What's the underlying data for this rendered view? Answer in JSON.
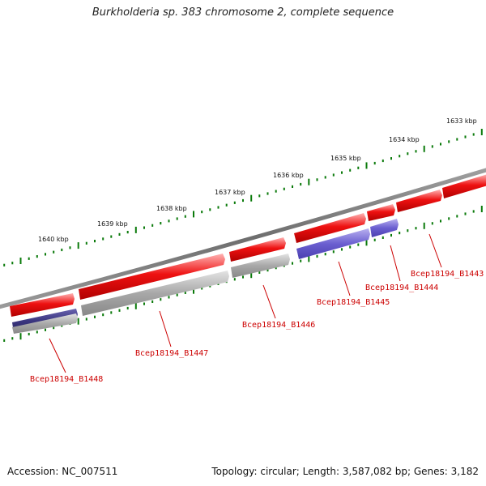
{
  "title": "Burkholderia sp. 383 chromosome 2, complete sequence",
  "footer": {
    "accession": "Accession: NC_007511",
    "topology": "Topology: circular; Length: 3,587,082 bp; Genes: 3,182"
  },
  "colors": {
    "backbone": "#7a7a7a",
    "ruler_tick": "#0a7a0a",
    "cds_forward": "#ee1111",
    "cds_reverse_blue": "#6b5fd0",
    "cds_reverse_dark": "#3b3680",
    "cds_reverse_grey": "#a8a8a8",
    "label": "#cc0000"
  },
  "ruler_labels": [
    "1640 kbp",
    "1639 kbp",
    "1638 kbp",
    "1637 kbp",
    "1636 kbp",
    "1635 kbp",
    "1634 kbp",
    "1633 kbp"
  ],
  "genes": [
    {
      "label": "Bcep18194_B1448",
      "strand": "reverse",
      "color": "dark"
    },
    {
      "label": "Bcep18194_B1447",
      "strand": "reverse",
      "color": "grey"
    },
    {
      "label": "Bcep18194_B1446",
      "strand": "reverse",
      "color": "grey"
    },
    {
      "label": "Bcep18194_B1445",
      "strand": "reverse",
      "color": "blue"
    },
    {
      "label": "Bcep18194_B1444",
      "strand": "reverse",
      "color": "blue"
    },
    {
      "label": "Bcep18194_B1443",
      "strand": "forward",
      "color": "red"
    }
  ]
}
